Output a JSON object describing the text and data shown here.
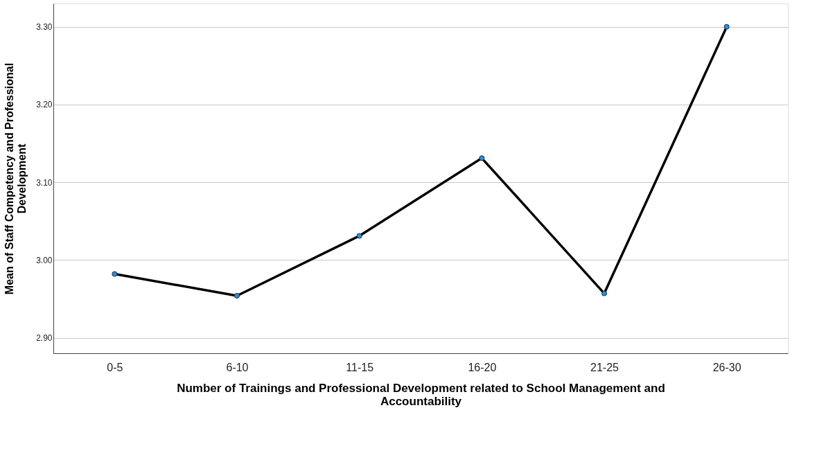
{
  "chart_data": {
    "type": "line",
    "xlabel": "Number of Trainings and Professional Development related to School Management and\nAccountability",
    "ylabel": "Mean of Staff Competency and Professional\nDevelopment",
    "categories": [
      "0-5",
      "6-10",
      "11-15",
      "16-20",
      "21-25",
      "26-30"
    ],
    "series": [
      {
        "color": "#000000",
        "values": [
          2.982,
          2.954,
          3.031,
          3.131,
          2.957,
          3.3
        ]
      }
    ],
    "ylim": [
      2.88,
      3.33
    ],
    "yticks": [
      {
        "value": 2.9,
        "label": "2.90"
      },
      {
        "value": 3.0,
        "label": "3.00"
      },
      {
        "value": 3.1,
        "label": "3.10"
      },
      {
        "value": 3.2,
        "label": "3.20"
      },
      {
        "value": 3.3,
        "label": "3.30"
      }
    ],
    "grid": "y",
    "marker": "circle",
    "line_style": "solid"
  }
}
